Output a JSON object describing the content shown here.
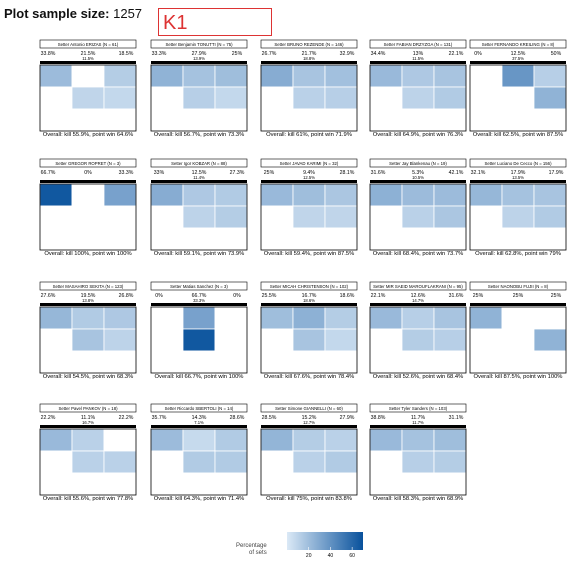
{
  "header": {
    "title_label": "Plot sample size:",
    "sample_size": "1257",
    "annotation": "K1"
  },
  "legend": {
    "title_line1": "Percentage",
    "title_line2": "of sets",
    "ticks": [
      "20",
      "40",
      "60"
    ],
    "color_low": "#dbe9f6",
    "color_high": "#08519c"
  },
  "chart_data": {
    "type": "heatmap",
    "value_min": 0,
    "value_max": 70,
    "panels": [
      {
        "title": "Setter Antonio ERIZAS (N = 61)",
        "top": [
          "33.8%",
          "21.5%",
          "18.5%"
        ],
        "mid": "11.5%",
        "vals": [
          21,
          0,
          13,
          0,
          9,
          8,
          0,
          0,
          0
        ],
        "footer": "Overall: kill 55.9%, point win 64.6%"
      },
      {
        "title": "Setter Benjamin TONUTTI (N = 75)",
        "top": [
          "33.3%",
          "27.9%",
          "25%"
        ],
        "mid": "13.9%",
        "vals": [
          25,
          18,
          20,
          0,
          12,
          8,
          0,
          0,
          0
        ],
        "footer": "Overall: kill 56.7%, point win 73.3%"
      },
      {
        "title": "Setter BRUNO REZENDE (N = 146)",
        "top": [
          "26.7%",
          "21.7%",
          "32.9%"
        ],
        "mid": "18.8%",
        "vals": [
          28,
          17,
          19,
          0,
          11,
          12,
          0,
          0,
          0
        ],
        "footer": "Overall: kill 61%, point win 71.9%"
      },
      {
        "title": "Setter FABIAN DRZYZGA (N = 131)",
        "top": [
          "34.4%",
          "13%",
          "22.1%"
        ],
        "mid": "11.5%",
        "vals": [
          22,
          15,
          17,
          0,
          10,
          14,
          0,
          0,
          0
        ],
        "footer": "Overall: kill 64.9%, point win 76.3%"
      },
      {
        "title": "Setter FERNANDO KREILING (N = 8)",
        "top": [
          "0%",
          "12.5%",
          "50%"
        ],
        "mid": "37.5%",
        "vals": [
          0,
          38,
          12,
          0,
          0,
          25,
          0,
          0,
          0
        ],
        "footer": "Overall: kill 62.5%, point win 87.5%"
      },
      {
        "title": "Setter GREGOR ROPRET (N = 3)",
        "top": [
          "66.7%",
          "0%",
          "33.3%"
        ],
        "mid": "",
        "vals": [
          67,
          0,
          33,
          0,
          0,
          0,
          0,
          0,
          0
        ],
        "footer": "Overall: kill 100%, point win 100%"
      },
      {
        "title": "Setter Igor KOBZAR (N = 88)",
        "top": [
          "33%",
          "12.5%",
          "27.3%"
        ],
        "mid": "11.4%",
        "vals": [
          28,
          15,
          14,
          0,
          10,
          13,
          0,
          0,
          0
        ],
        "footer": "Overall: kill 59.1%, point win 73.9%"
      },
      {
        "title": "Setter JAVAD KARIMI (N = 32)",
        "top": [
          "25%",
          "9.4%",
          "28.1%"
        ],
        "mid": "12.5%",
        "vals": [
          22,
          20,
          16,
          0,
          9,
          9,
          0,
          0,
          0
        ],
        "footer": "Overall: kill 59.4%, point win 87.5%"
      },
      {
        "title": "Setter Jay Blankenau (N = 19)",
        "top": [
          "31.6%",
          "5.3%",
          "42.1%"
        ],
        "mid": "10.5%",
        "vals": [
          26,
          21,
          21,
          0,
          11,
          16,
          0,
          0,
          0
        ],
        "footer": "Overall: kill 68.4%, point win 73.7%"
      },
      {
        "title": "Setter Luciano De Cecco (N = 156)",
        "top": [
          "32.1%",
          "17.9%",
          "17.9%"
        ],
        "mid": "13.5%",
        "vals": [
          23,
          18,
          17,
          0,
          10,
          14,
          0,
          0,
          0
        ],
        "footer": "Overall: kill 62.8%, point win 79%"
      },
      {
        "title": "Setter MASAHIRO SEKITA (N = 123)",
        "top": [
          "27.6%",
          "19.5%",
          "26.8%"
        ],
        "mid": "13.8%",
        "vals": [
          23,
          14,
          15,
          0,
          17,
          10,
          0,
          0,
          0
        ],
        "footer": "Overall: kill 54.5%, point win 68.3%"
      },
      {
        "title": "Setter Matias Sanchez (N = 3)",
        "top": [
          "0%",
          "66.7%",
          "0%"
        ],
        "mid": "33.3%",
        "vals": [
          0,
          33,
          0,
          0,
          67,
          0,
          0,
          0,
          0
        ],
        "footer": "Overall: kill 66.7%, point win 100%"
      },
      {
        "title": "Setter MICAH CHRISTENSON (N = 102)",
        "top": [
          "25.5%",
          "16.7%",
          "18.6%"
        ],
        "mid": "18.6%",
        "vals": [
          20,
          26,
          13,
          0,
          17,
          8,
          0,
          0,
          0
        ],
        "footer": "Overall: kill 67.6%, point win 78.4%"
      },
      {
        "title": "Setter MIR SAEID MAROUFLAKRANI (N = 95)",
        "top": [
          "22.1%",
          "12.6%",
          "31.6%"
        ],
        "mid": "14.7%",
        "vals": [
          22,
          12,
          17,
          0,
          13,
          12,
          0,
          0,
          0
        ],
        "footer": "Overall: kill 52.6%, point win 68.4%"
      },
      {
        "title": "Setter NAONOBU FUJII (N = 8)",
        "top": [
          "25%",
          "25%",
          "25%"
        ],
        "mid": "",
        "vals": [
          25,
          0,
          0,
          0,
          0,
          25,
          0,
          0,
          0
        ],
        "footer": "Overall: kill 87.5%, point win 100%"
      },
      {
        "title": "Setter Pavel PANKOV (N = 18)",
        "top": [
          "22.2%",
          "11.1%",
          "22.2%"
        ],
        "mid": "16.7%",
        "vals": [
          22,
          11,
          0,
          0,
          11,
          11,
          0,
          0,
          0
        ],
        "footer": "Overall: kill 55.6%, point win 77.8%"
      },
      {
        "title": "Setter Riccardo SBERTOLI (N = 14)",
        "top": [
          "35.7%",
          "14.3%",
          "28.6%"
        ],
        "mid": "7.1%",
        "vals": [
          21,
          7,
          14,
          0,
          14,
          14,
          0,
          0,
          0
        ],
        "footer": "Overall: kill 64.3%, point win 71.4%"
      },
      {
        "title": "Setter Simone GIANNELLI (N = 60)",
        "top": [
          "28.5%",
          "15.2%",
          "27.9%"
        ],
        "mid": "12.7%",
        "vals": [
          24,
          13,
          11,
          0,
          11,
          14,
          0,
          0,
          0
        ],
        "footer": "Overall: kill 75%, point win 83.8%"
      },
      {
        "title": "Setter Tyler Sanders (N = 103)",
        "top": [
          "38.8%",
          "11.7%",
          "31.1%"
        ],
        "mid": "11.7%",
        "vals": [
          22,
          18,
          20,
          0,
          12,
          13,
          0,
          0,
          0
        ],
        "footer": "Overall: kill 58.3%, point win 68.9%"
      }
    ]
  }
}
